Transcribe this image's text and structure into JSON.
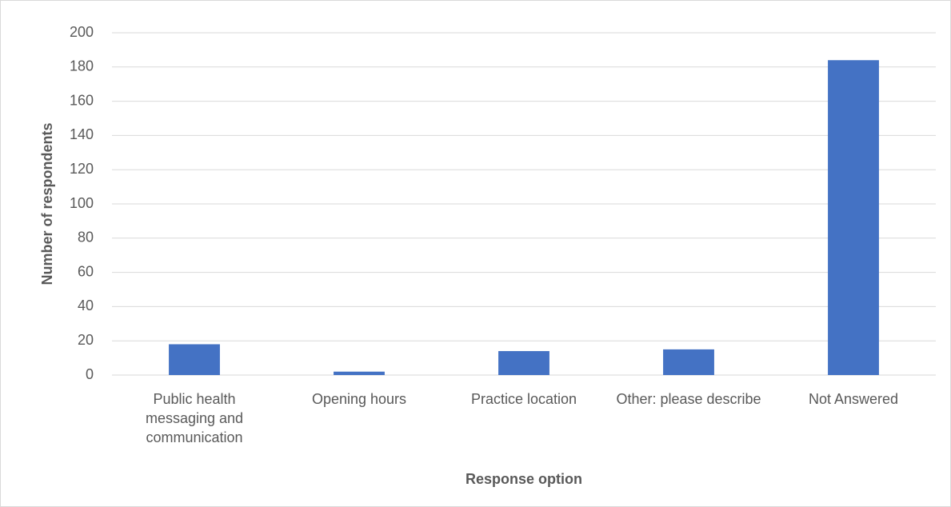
{
  "chart_data": {
    "type": "bar",
    "categories": [
      "Public health messaging and communication",
      "Opening hours",
      "Practice location",
      "Other: please describe",
      "Not Answered"
    ],
    "values": [
      18,
      2,
      14,
      15,
      184
    ],
    "color": "#4472c4",
    "x_label": "Response option",
    "y_label": "Number of respondents",
    "ylim": [
      0,
      200
    ],
    "yticks": [
      0,
      20,
      40,
      60,
      80,
      100,
      120,
      140,
      160,
      180,
      200
    ],
    "grid": true
  }
}
